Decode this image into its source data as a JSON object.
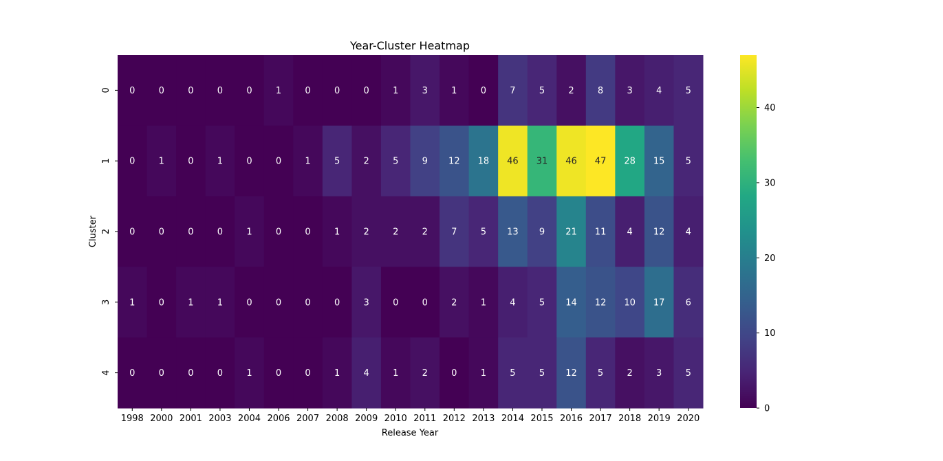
{
  "chart_data": {
    "type": "heatmap",
    "title": "Year-Cluster Heatmap",
    "xlabel": "Release Year",
    "ylabel": "Cluster",
    "x": [
      "1998",
      "2000",
      "2001",
      "2003",
      "2004",
      "2006",
      "2007",
      "2008",
      "2009",
      "2010",
      "2011",
      "2012",
      "2013",
      "2014",
      "2015",
      "2016",
      "2017",
      "2018",
      "2019",
      "2020"
    ],
    "y": [
      "0",
      "1",
      "2",
      "3",
      "4"
    ],
    "values": [
      [
        0,
        0,
        0,
        0,
        0,
        1,
        0,
        0,
        0,
        1,
        3,
        1,
        0,
        7,
        5,
        2,
        8,
        3,
        4,
        5
      ],
      [
        0,
        1,
        0,
        1,
        0,
        0,
        1,
        5,
        2,
        5,
        9,
        12,
        18,
        46,
        31,
        46,
        47,
        28,
        15,
        5
      ],
      [
        0,
        0,
        0,
        0,
        1,
        0,
        0,
        1,
        2,
        2,
        2,
        7,
        5,
        13,
        9,
        21,
        11,
        4,
        12,
        4
      ],
      [
        1,
        0,
        1,
        1,
        0,
        0,
        0,
        0,
        3,
        0,
        0,
        2,
        1,
        4,
        5,
        14,
        12,
        10,
        17,
        6
      ],
      [
        0,
        0,
        0,
        0,
        1,
        0,
        0,
        1,
        4,
        1,
        2,
        0,
        1,
        5,
        5,
        12,
        5,
        2,
        3,
        5
      ]
    ],
    "vmin": 0,
    "vmax": 47,
    "colormap": "viridis",
    "annotations": true,
    "colorbar_ticks": [
      0,
      10,
      20,
      30,
      40
    ]
  }
}
